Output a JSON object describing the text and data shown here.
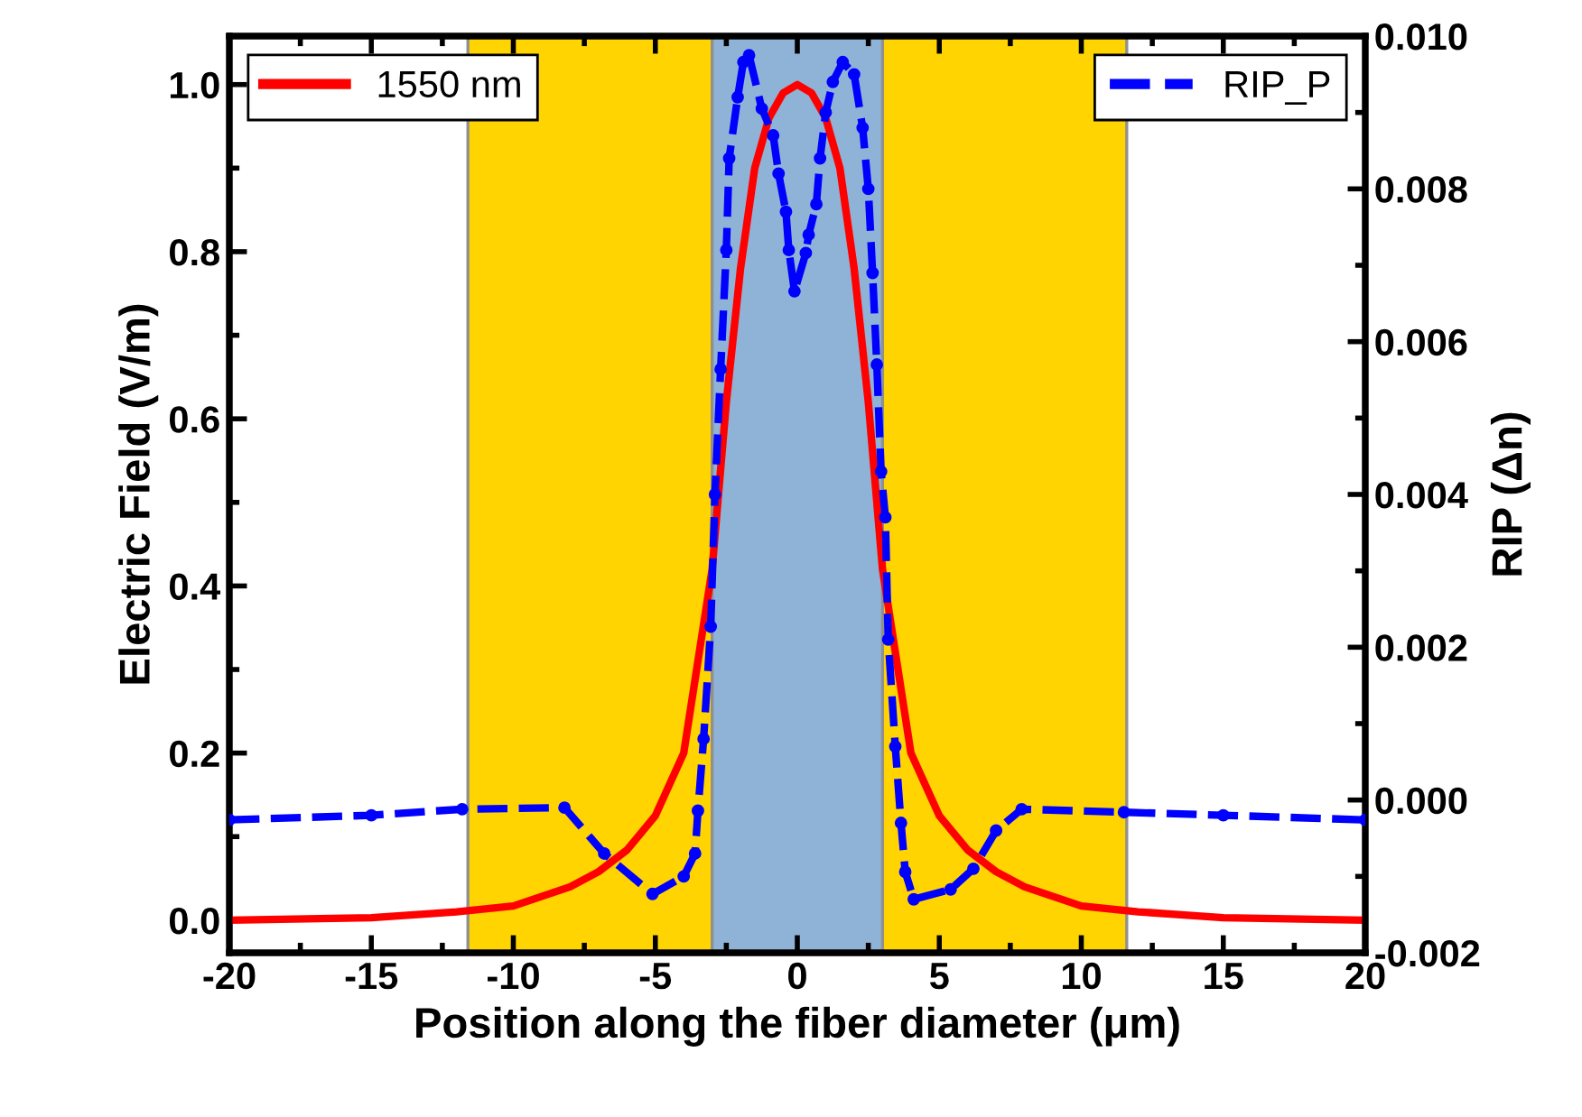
{
  "chart_data": {
    "type": "line",
    "xlabel": "Position along the fiber diameter (μm)",
    "ylabel": "Electric Field (V/m)",
    "y2label": "RIP (Δn)",
    "xlim": [
      -20,
      20
    ],
    "xticks": [
      -20,
      -15,
      -10,
      -5,
      0,
      5,
      10,
      15,
      20
    ],
    "ylim": [
      -0.039,
      1.058
    ],
    "yticks": [
      {
        "value": 0,
        "label": "0.0"
      },
      {
        "value": 0.2,
        "label": "0.2"
      },
      {
        "value": 0.4,
        "label": "0.4"
      },
      {
        "value": 0.6,
        "label": "0.6"
      },
      {
        "value": 0.8,
        "label": "0.8"
      },
      {
        "value": 1,
        "label": "1.0"
      }
    ],
    "y2lim": [
      -0.002,
      0.01
    ],
    "y2ticks": [
      {
        "value": -0.002,
        "label": "-0.002"
      },
      {
        "value": 0,
        "label": "0.000"
      },
      {
        "value": 0.002,
        "label": "0.002"
      },
      {
        "value": 0.004,
        "label": "0.004"
      },
      {
        "value": 0.006,
        "label": "0.006"
      },
      {
        "value": 0.008,
        "label": "0.008"
      },
      {
        "value": 0.01,
        "label": "0.010"
      }
    ],
    "bands": [
      {
        "axis": "x",
        "from": -11.6,
        "to": 11.6,
        "color": "#ffd400"
      },
      {
        "axis": "x",
        "from": -3,
        "to": 3,
        "color": "#8fb3d6"
      }
    ],
    "legend": "top",
    "grid": false,
    "series": [
      {
        "name": "1550 nm",
        "color": "#ff0000",
        "line_style": "solid",
        "marker": "none",
        "x": [
          -20,
          -15,
          -12,
          -10,
          -8,
          -7,
          -6,
          -5,
          -4,
          -3,
          -2.5,
          -2,
          -1.5,
          -1,
          -0.5,
          0,
          0.5,
          1,
          1.5,
          2,
          2.5,
          3,
          4,
          5,
          6,
          7,
          8,
          10,
          12,
          15,
          20
        ],
        "values": [
          0,
          0.003,
          0.01,
          0.017,
          0.04,
          0.058,
          0.084,
          0.125,
          0.2,
          0.42,
          0.62,
          0.78,
          0.9,
          0.96,
          0.99,
          1.0,
          0.99,
          0.96,
          0.9,
          0.78,
          0.62,
          0.42,
          0.2,
          0.125,
          0.084,
          0.058,
          0.04,
          0.017,
          0.01,
          0.003,
          0
        ]
      },
      {
        "name": "RIP_P",
        "color": "#0000ff",
        "axis": "y2",
        "line_style": "dashed",
        "marker": "circle",
        "x": [
          -20,
          -15,
          -11.8,
          -8.2,
          -6.8,
          -5.1,
          -4.0,
          -3.6,
          -3.5,
          -3.3,
          -3.05,
          -2.9,
          -2.7,
          -2.5,
          -2.4,
          -2.1,
          -1.9,
          -1.7,
          -1.25,
          -0.85,
          -0.66,
          -0.4,
          -0.3,
          -0.1,
          0.3,
          0.4,
          0.67,
          0.8,
          1.0,
          1.25,
          1.6,
          2.0,
          2.3,
          2.5,
          2.65,
          2.8,
          2.95,
          3.1,
          3.2,
          3.45,
          3.65,
          3.8,
          4.1,
          5.4,
          6.2,
          7.0,
          7.9,
          11.5,
          15,
          20
        ],
        "values": [
          -0.00026,
          -0.0002,
          -0.00012,
          -0.0001,
          -0.0007,
          -0.00123,
          -0.001,
          -0.0007,
          -0.00014,
          0.0008,
          0.00227,
          0.004,
          0.00564,
          0.0072,
          0.0084,
          0.0092,
          0.00966,
          0.00975,
          0.00905,
          0.0087,
          0.0082,
          0.0077,
          0.0072,
          0.00666,
          0.00716,
          0.0074,
          0.0078,
          0.0084,
          0.009,
          0.0094,
          0.00966,
          0.0095,
          0.0088,
          0.008,
          0.0069,
          0.0057,
          0.0043,
          0.0037,
          0.0021,
          0.0007,
          -0.0003,
          -0.00094,
          -0.0013,
          -0.00117,
          -0.0009,
          -0.0004,
          -0.00012,
          -0.00016,
          -0.0002,
          -0.00026
        ]
      }
    ]
  }
}
